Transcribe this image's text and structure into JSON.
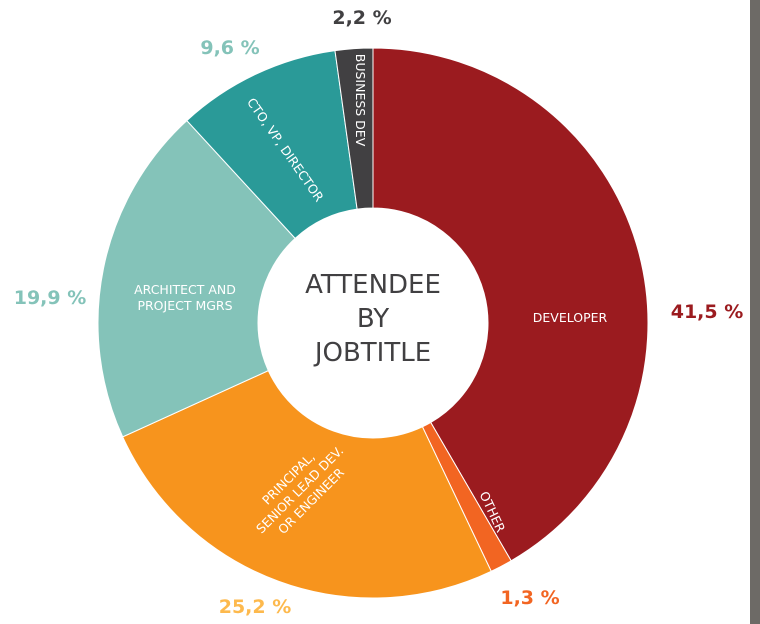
{
  "chart_data": {
    "type": "donut",
    "title": "ATTENDEE BY JOBTITLE",
    "categories": [
      "DEVELOPER",
      "OTHER",
      "PRINCIPAL,\nSENIOR LEAD DEV.\nOR ENGINEER",
      "ARCHITECT AND\nPROJECT MGRS",
      "CTO, VP, DIRECTOR",
      "BUSINESS DEV"
    ],
    "values": [
      41.5,
      1.3,
      25.2,
      19.9,
      9.6,
      2.2
    ],
    "value_labels": [
      "41,5 %",
      "1,3 %",
      "25,2 %",
      "19,9 %",
      "9,6 %",
      "2,2 %"
    ],
    "colors": [
      "#9b1b1f",
      "#f26522",
      "#f7941d",
      "#84c3b9",
      "#2a9a98",
      "#414042"
    ],
    "label_colors": [
      "#9b1b1f",
      "#f26522",
      "#fdb94d",
      "#84c3b9",
      "#84c3b9",
      "#414042"
    ]
  }
}
